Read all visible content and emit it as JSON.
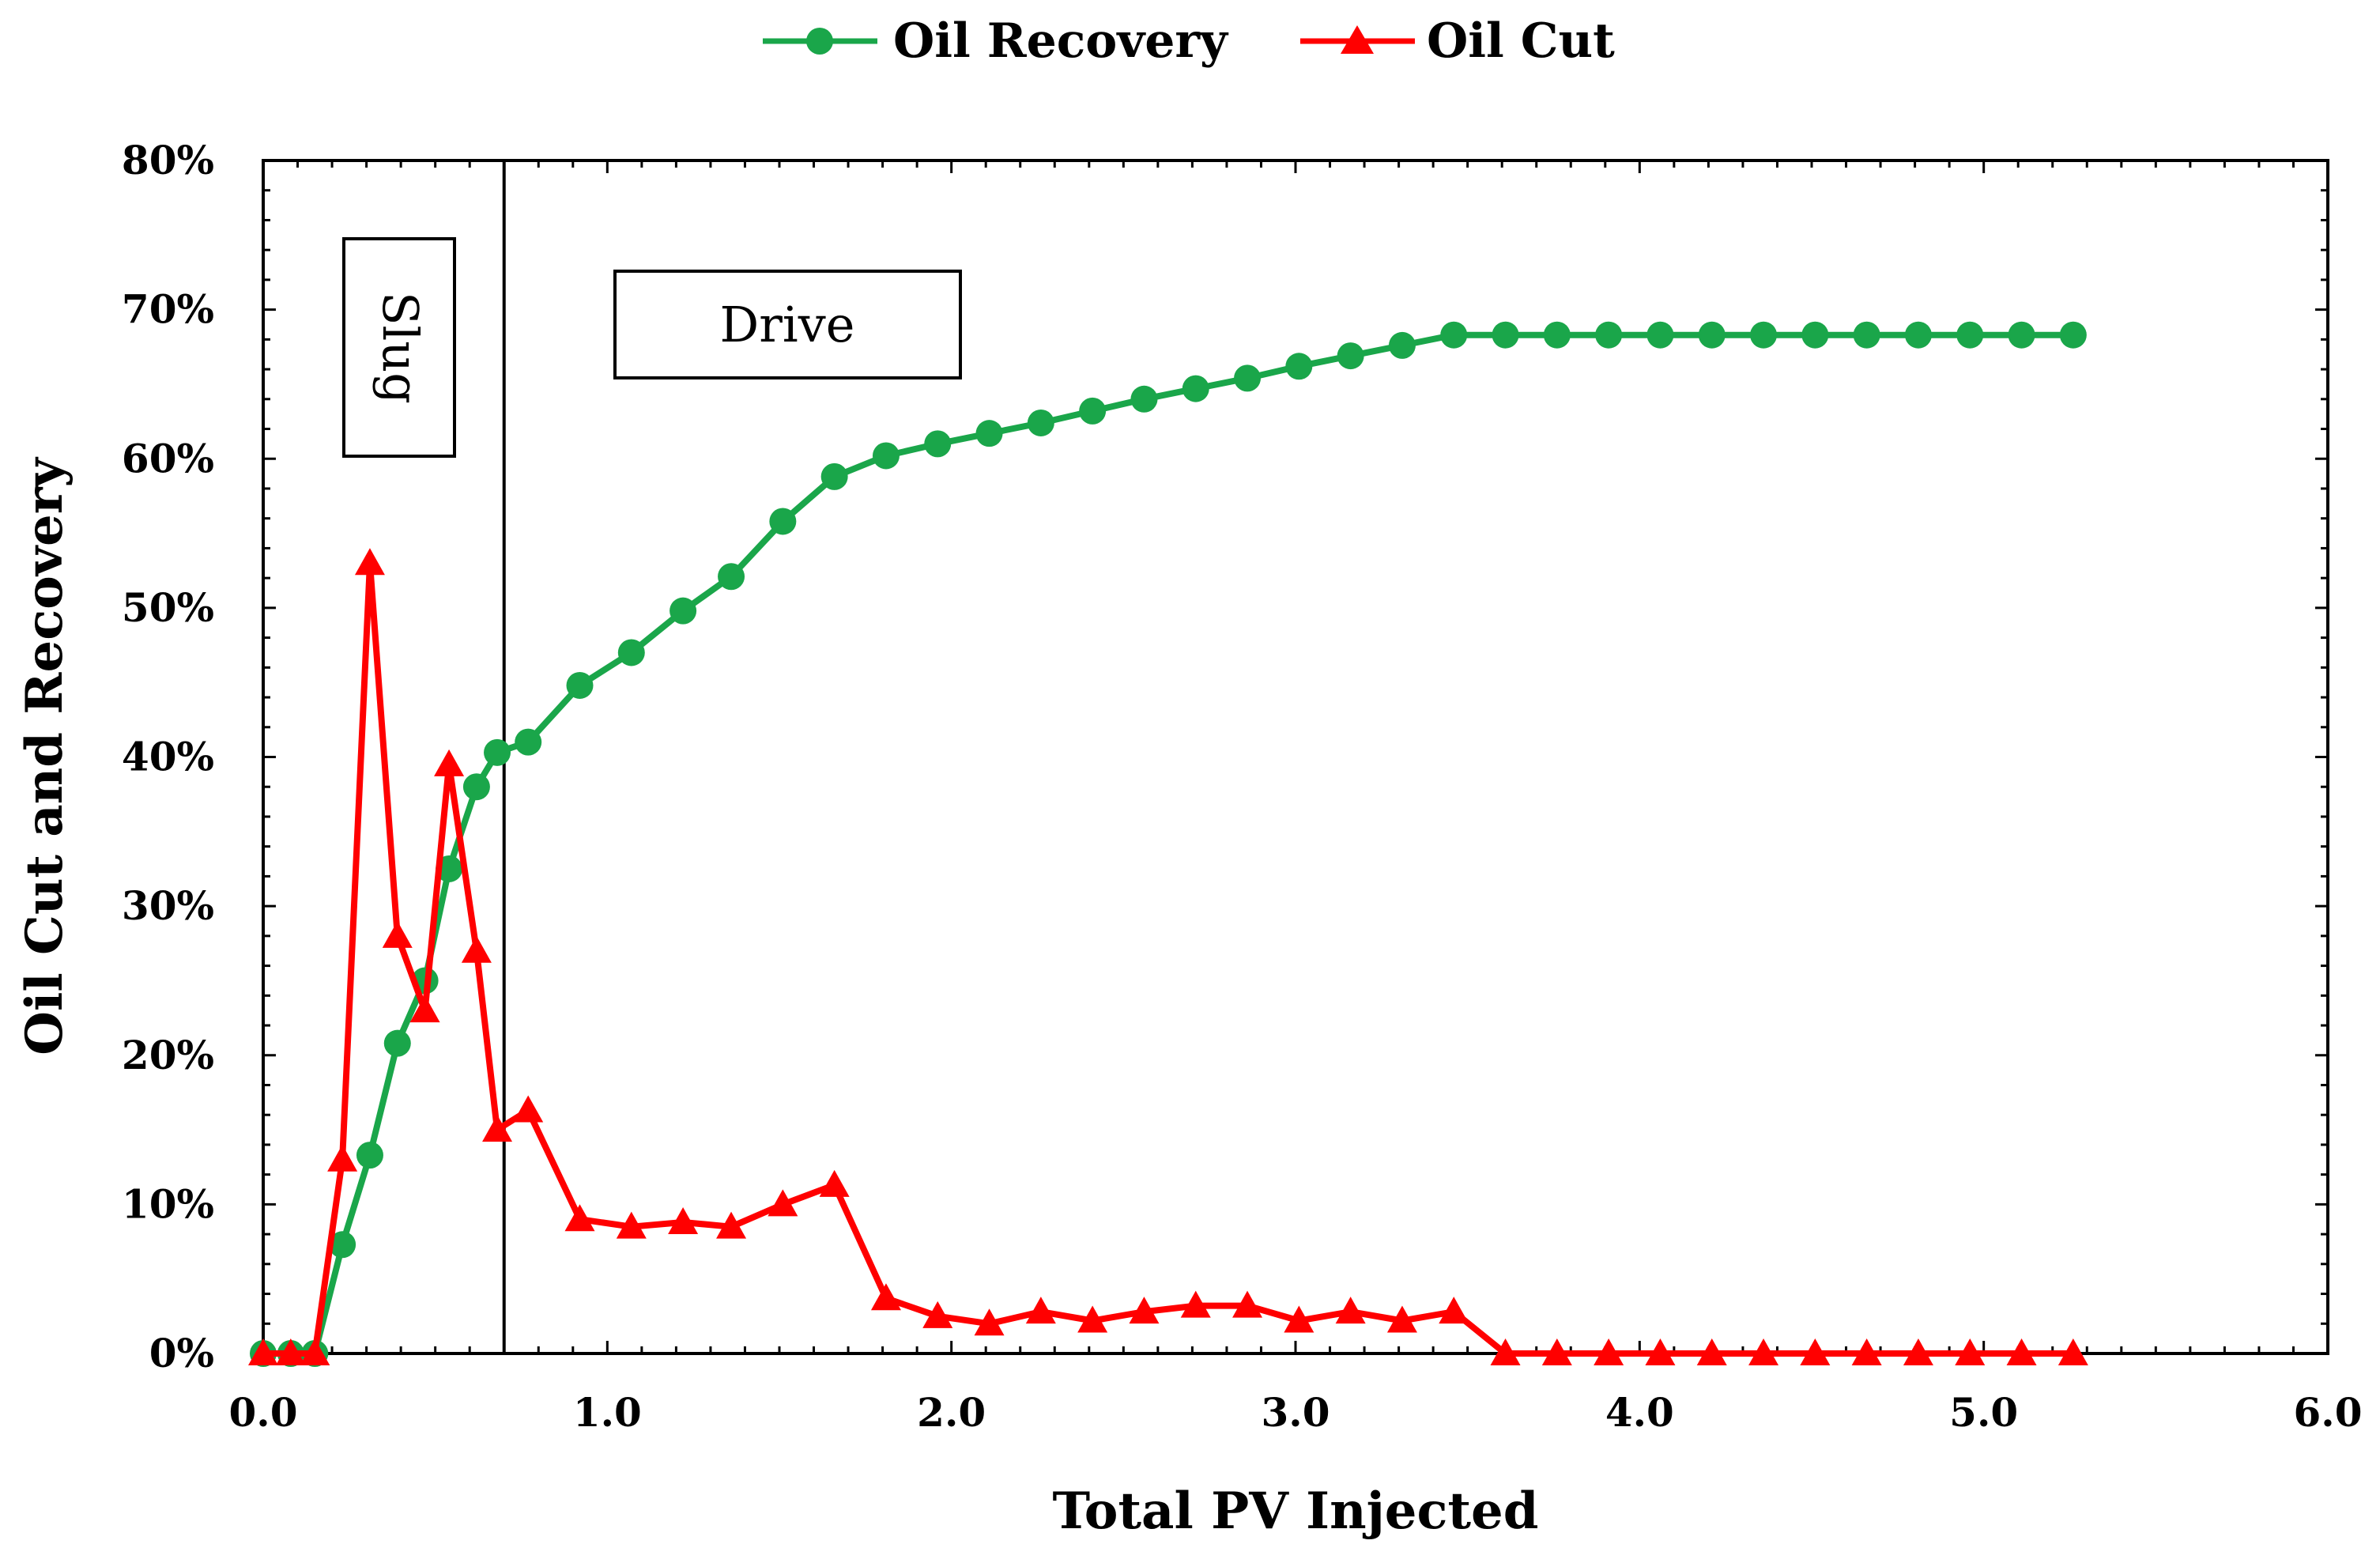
{
  "colors": {
    "recovery": "#1aa64a",
    "oil_cut": "#ff0000",
    "axis": "#000000"
  },
  "legend": {
    "position": "top-center"
  },
  "annotations": {
    "slug": "Slug",
    "drive": "Drive",
    "divider_x": 0.7
  },
  "chart_data": {
    "type": "line",
    "title": "",
    "xlabel": "Total PV Injected",
    "ylabel": "Oil Cut and Recovery",
    "xlim": [
      0,
      6
    ],
    "ylim": [
      0,
      0.8
    ],
    "xticks": [
      0,
      1,
      2,
      3,
      4,
      5,
      6
    ],
    "xtick_labels": [
      "0.0",
      "1.0",
      "2.0",
      "3.0",
      "4.0",
      "5.0",
      "6.0"
    ],
    "yticks": [
      0,
      0.1,
      0.2,
      0.3,
      0.4,
      0.5,
      0.6,
      0.7,
      0.8
    ],
    "ytick_labels": [
      "0%",
      "10%",
      "20%",
      "30%",
      "40%",
      "50%",
      "60%",
      "70%",
      "80%"
    ],
    "grid": false,
    "series": [
      {
        "name": "Oil Recovery",
        "marker": "circle",
        "color": "#1aa64a",
        "x": [
          0,
          0.08,
          0.15,
          0.23,
          0.31,
          0.39,
          0.47,
          0.54,
          0.62,
          0.68,
          0.77,
          0.92,
          1.07,
          1.22,
          1.36,
          1.51,
          1.66,
          1.81,
          1.96,
          2.11,
          2.26,
          2.41,
          2.56,
          2.71,
          2.86,
          3.01,
          3.16,
          3.31,
          3.46,
          3.61,
          3.76,
          3.91,
          4.06,
          4.21,
          4.36,
          4.51,
          4.66,
          4.81,
          4.96,
          5.11,
          5.26
        ],
        "y": [
          0,
          0,
          0,
          0.073,
          0.133,
          0.208,
          0.25,
          0.325,
          0.38,
          0.403,
          0.41,
          0.448,
          0.47,
          0.498,
          0.521,
          0.558,
          0.588,
          0.602,
          0.61,
          0.617,
          0.624,
          0.632,
          0.64,
          0.647,
          0.654,
          0.662,
          0.669,
          0.676,
          0.683,
          0.683,
          0.683,
          0.683,
          0.683,
          0.683,
          0.683,
          0.683,
          0.683,
          0.683,
          0.683,
          0.683,
          0.683
        ]
      },
      {
        "name": "Oil Cut",
        "marker": "triangle",
        "color": "#ff0000",
        "x": [
          0,
          0.08,
          0.15,
          0.23,
          0.31,
          0.39,
          0.47,
          0.54,
          0.62,
          0.68,
          0.77,
          0.92,
          1.07,
          1.22,
          1.36,
          1.51,
          1.66,
          1.81,
          1.96,
          2.11,
          2.26,
          2.41,
          2.56,
          2.71,
          2.86,
          3.01,
          3.16,
          3.31,
          3.46,
          3.61,
          3.76,
          3.91,
          4.06,
          4.21,
          4.36,
          4.51,
          4.66,
          4.81,
          4.96,
          5.11,
          5.26
        ],
        "y": [
          0,
          0,
          0,
          0.13,
          0.53,
          0.28,
          0.23,
          0.395,
          0.27,
          0.15,
          0.163,
          0.09,
          0.085,
          0.088,
          0.085,
          0.1,
          0.113,
          0.037,
          0.025,
          0.02,
          0.028,
          0.022,
          0.028,
          0.032,
          0.032,
          0.022,
          0.028,
          0.022,
          0.028,
          0,
          0,
          0,
          0,
          0,
          0,
          0,
          0,
          0,
          0,
          0,
          0
        ]
      }
    ]
  }
}
